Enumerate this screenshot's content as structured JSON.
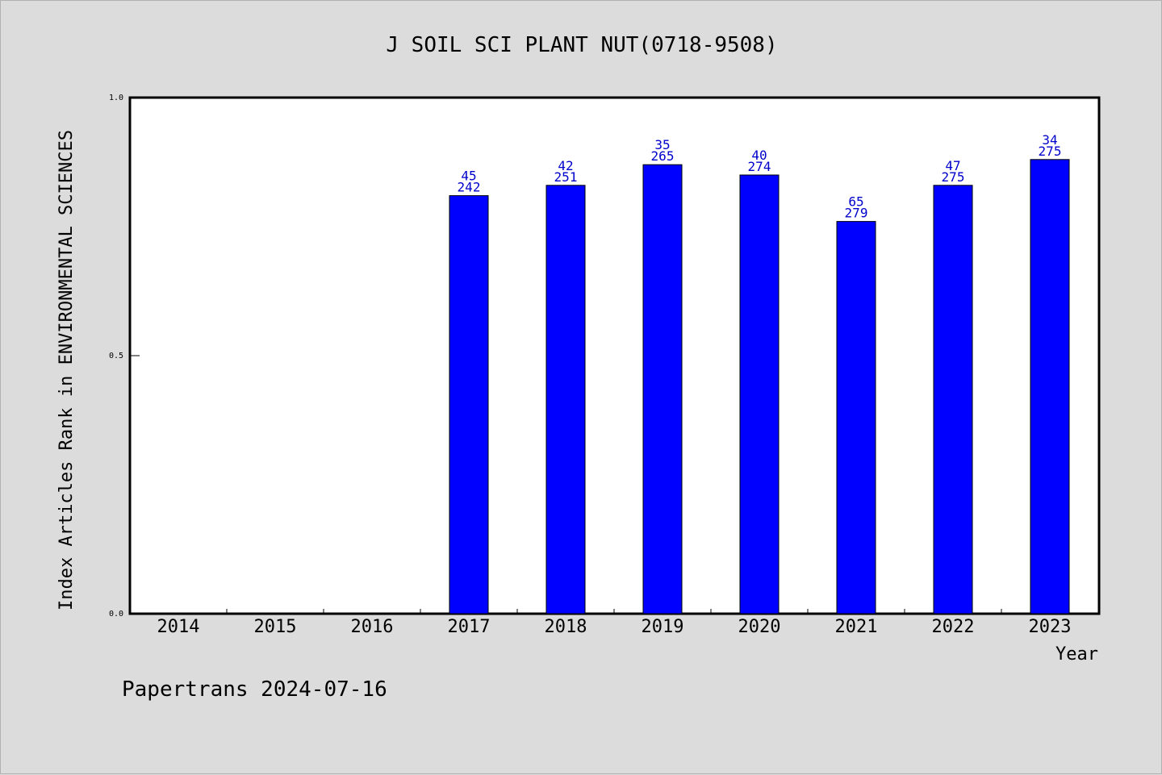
{
  "chart_data": {
    "type": "bar",
    "title": "J SOIL SCI PLANT NUT(0718-9508)",
    "xlabel": "Year",
    "ylabel": "Index Articles Rank in ENVIRONMENTAL SCIENCES",
    "ylim": [
      0,
      1
    ],
    "yticks": [
      "0.0",
      "0.5",
      "1.0"
    ],
    "grid": false,
    "categories": [
      "2014",
      "2015",
      "2016",
      "2017",
      "2018",
      "2019",
      "2020",
      "2021",
      "2022",
      "2023"
    ],
    "values": [
      null,
      null,
      null,
      0.81,
      0.83,
      0.87,
      0.85,
      0.76,
      0.83,
      0.88
    ],
    "rank": [
      "",
      "",
      "",
      "45",
      "42",
      "35",
      "40",
      "65",
      "47",
      "34"
    ],
    "total": [
      "",
      "",
      "",
      "242",
      "251",
      "265",
      "274",
      "279",
      "275",
      "275"
    ],
    "bar_color": "#0000ff",
    "label_color": "#0000cc"
  },
  "footer": "Papertrans 2024-07-16"
}
